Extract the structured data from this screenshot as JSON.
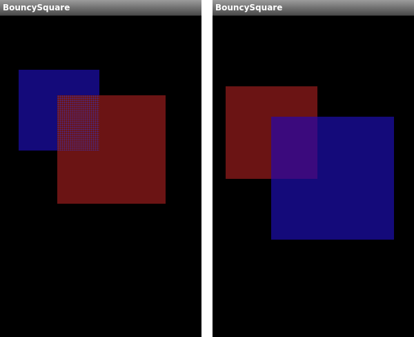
{
  "app": {
    "title": "BouncySquare"
  },
  "colors": {
    "background": "#000000",
    "title_text": "#ffffff",
    "red_square": "#6b1414",
    "blue_square": "#140a7a",
    "blend_overlap": "#3b0a7d",
    "divider": "#ffffff"
  },
  "screens": [
    {
      "name": "screen-left",
      "title": "BouncySquare",
      "blend_mode": "dithered"
    },
    {
      "name": "screen-right",
      "title": "BouncySquare",
      "blend_mode": "alpha"
    }
  ]
}
